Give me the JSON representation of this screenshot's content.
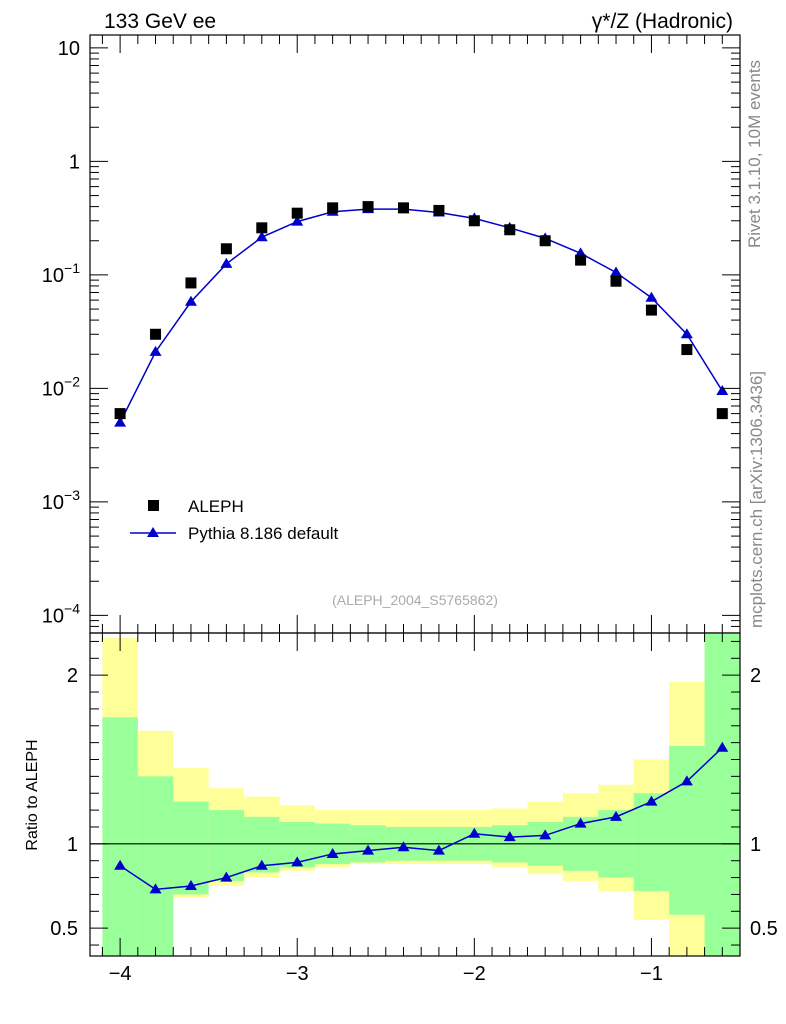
{
  "header": {
    "left": "133 GeV ee",
    "right": "γ*/Z (Hadronic)"
  },
  "side_text": {
    "rivet": "Rivet 3.1.10,  10M events",
    "mcplots": "mcplots.cern.ch [arXiv:1306.3436]"
  },
  "analysis_label": "(ALEPH_2004_S5765862)",
  "colors": {
    "data_marker": "#000000",
    "mc_line": "#0000cc",
    "band_inner": "#99ff99",
    "band_outer": "#ffff99"
  },
  "chart_data": [
    {
      "type": "scatter",
      "yscale": "log",
      "xlim": [
        -4.17,
        -0.5
      ],
      "ylim": [
        7e-05,
        13
      ],
      "y_ticks": [
        {
          "value": 10,
          "base": "10",
          "exp": ""
        },
        {
          "value": 1,
          "base": "1",
          "exp": ""
        },
        {
          "value": 0.1,
          "base": "10",
          "exp": "−1"
        },
        {
          "value": 0.01,
          "base": "10",
          "exp": "−2"
        },
        {
          "value": 0.001,
          "base": "10",
          "exp": "−3"
        },
        {
          "value": 0.0001,
          "base": "10",
          "exp": "−4"
        }
      ],
      "legend": {
        "position": "lower-left",
        "entries": [
          "ALEPH",
          "Pythia 8.186 default"
        ]
      },
      "series": [
        {
          "name": "ALEPH",
          "marker": "square",
          "x": [
            -4.0,
            -3.8,
            -3.6,
            -3.4,
            -3.2,
            -3.0,
            -2.8,
            -2.6,
            -2.4,
            -2.2,
            -2.0,
            -1.8,
            -1.6,
            -1.4,
            -1.2,
            -1.0,
            -0.8,
            -0.6
          ],
          "y": [
            0.006,
            0.03,
            0.085,
            0.17,
            0.26,
            0.35,
            0.39,
            0.4,
            0.39,
            0.37,
            0.3,
            0.25,
            0.2,
            0.135,
            0.088,
            0.049,
            0.022,
            0.006
          ]
        },
        {
          "name": "Pythia 8.186 default",
          "marker": "triangle",
          "x": [
            -4.0,
            -3.8,
            -3.6,
            -3.4,
            -3.2,
            -3.0,
            -2.8,
            -2.6,
            -2.4,
            -2.2,
            -2.0,
            -1.8,
            -1.6,
            -1.4,
            -1.2,
            -1.0,
            -0.8,
            -0.6
          ],
          "y": [
            0.005,
            0.021,
            0.058,
            0.125,
            0.215,
            0.295,
            0.36,
            0.38,
            0.38,
            0.355,
            0.315,
            0.26,
            0.21,
            0.155,
            0.105,
            0.063,
            0.03,
            0.0095
          ]
        }
      ]
    },
    {
      "type": "line",
      "ylabel": "Ratio to ALEPH",
      "xlim": [
        -4.17,
        -0.5
      ],
      "ylim": [
        0.335,
        2.25
      ],
      "x_ticks": [
        {
          "value": -4,
          "label": "−4"
        },
        {
          "value": -3,
          "label": "−3"
        },
        {
          "value": -2,
          "label": "−2"
        },
        {
          "value": -1,
          "label": "−1"
        }
      ],
      "y_ticks": [
        {
          "value": 0.5,
          "label": "0.5"
        },
        {
          "value": 1,
          "label": "1"
        },
        {
          "value": 2,
          "label": "2"
        }
      ],
      "bins": [
        {
          "lo": -4.1,
          "hi": -3.9,
          "inner": [
            0.335,
            1.75
          ],
          "outer": [
            0.335,
            2.22
          ]
        },
        {
          "lo": -3.9,
          "hi": -3.7,
          "inner": [
            0.335,
            1.4
          ],
          "outer": [
            0.335,
            1.67
          ]
        },
        {
          "lo": -3.7,
          "hi": -3.5,
          "inner": [
            0.7,
            1.25
          ],
          "outer": [
            0.68,
            1.45
          ]
        },
        {
          "lo": -3.5,
          "hi": -3.3,
          "inner": [
            0.78,
            1.2
          ],
          "outer": [
            0.75,
            1.33
          ]
        },
        {
          "lo": -3.3,
          "hi": -3.1,
          "inner": [
            0.83,
            1.16
          ],
          "outer": [
            0.8,
            1.28
          ]
        },
        {
          "lo": -3.1,
          "hi": -2.9,
          "inner": [
            0.86,
            1.13
          ],
          "outer": [
            0.84,
            1.23
          ]
        },
        {
          "lo": -2.9,
          "hi": -2.7,
          "inner": [
            0.88,
            1.12
          ],
          "outer": [
            0.86,
            1.2
          ]
        },
        {
          "lo": -2.7,
          "hi": -2.5,
          "inner": [
            0.89,
            1.11
          ],
          "outer": [
            0.88,
            1.2
          ]
        },
        {
          "lo": -2.5,
          "hi": -2.3,
          "inner": [
            0.9,
            1.1
          ],
          "outer": [
            0.88,
            1.2
          ]
        },
        {
          "lo": -2.3,
          "hi": -2.1,
          "inner": [
            0.9,
            1.1
          ],
          "outer": [
            0.88,
            1.2
          ]
        },
        {
          "lo": -2.1,
          "hi": -1.9,
          "inner": [
            0.9,
            1.1
          ],
          "outer": [
            0.88,
            1.2
          ]
        },
        {
          "lo": -1.9,
          "hi": -1.7,
          "inner": [
            0.89,
            1.11
          ],
          "outer": [
            0.86,
            1.21
          ]
        },
        {
          "lo": -1.7,
          "hi": -1.5,
          "inner": [
            0.87,
            1.13
          ],
          "outer": [
            0.82,
            1.25
          ]
        },
        {
          "lo": -1.5,
          "hi": -1.3,
          "inner": [
            0.84,
            1.16
          ],
          "outer": [
            0.78,
            1.3
          ]
        },
        {
          "lo": -1.3,
          "hi": -1.1,
          "inner": [
            0.8,
            1.2
          ],
          "outer": [
            0.72,
            1.35
          ]
        },
        {
          "lo": -1.1,
          "hi": -0.9,
          "inner": [
            0.72,
            1.3
          ],
          "outer": [
            0.55,
            1.5
          ]
        },
        {
          "lo": -0.9,
          "hi": -0.7,
          "inner": [
            0.58,
            1.58
          ],
          "outer": [
            0.335,
            1.96
          ]
        },
        {
          "lo": -0.7,
          "hi": -0.5,
          "inner": [
            0.335,
            2.25
          ],
          "outer": [
            0.335,
            2.25
          ]
        }
      ],
      "series": [
        {
          "name": "Pythia 8.186 default",
          "marker": "triangle",
          "x": [
            -4.0,
            -3.8,
            -3.6,
            -3.4,
            -3.2,
            -3.0,
            -2.8,
            -2.6,
            -2.4,
            -2.2,
            -2.0,
            -1.8,
            -1.6,
            -1.4,
            -1.2,
            -1.0,
            -0.8,
            -0.6
          ],
          "y": [
            0.87,
            0.73,
            0.75,
            0.8,
            0.87,
            0.89,
            0.94,
            0.96,
            0.98,
            0.96,
            1.06,
            1.04,
            1.05,
            1.12,
            1.16,
            1.25,
            1.37,
            1.57
          ]
        }
      ]
    }
  ]
}
